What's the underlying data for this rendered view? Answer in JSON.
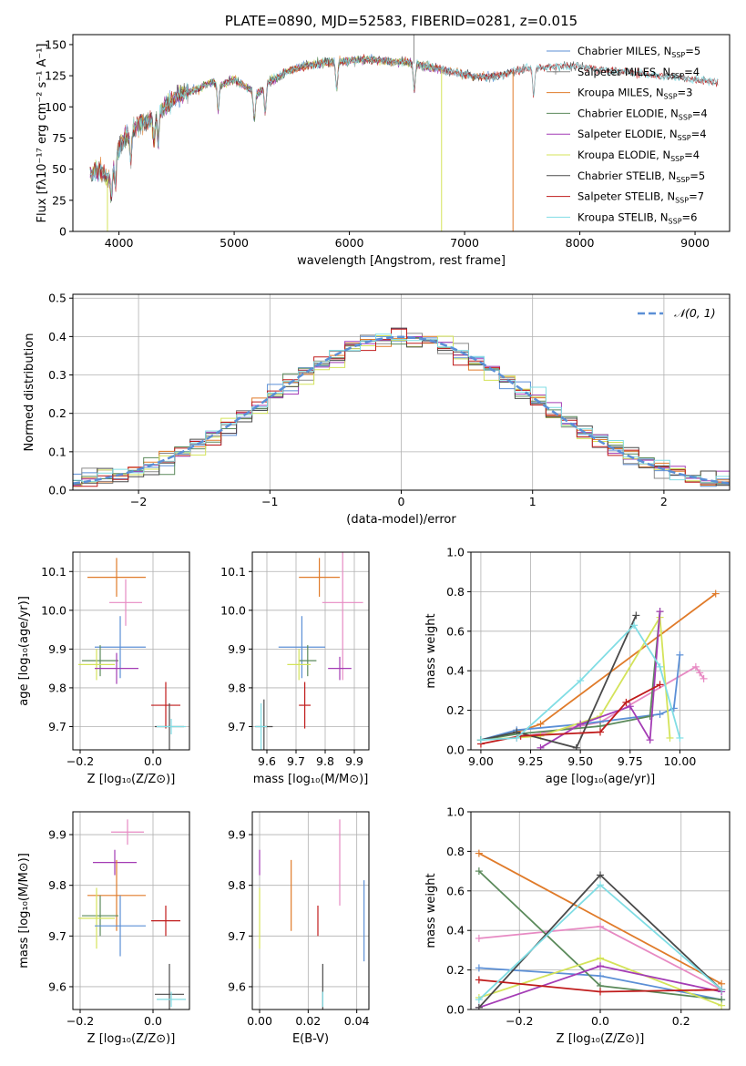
{
  "chart_data": [
    {
      "type": "line",
      "id": "spectrum",
      "title": "PLATE=0890, MJD=52583, FIBERID=0281, z=0.015",
      "xlabel": "wavelength [Angstrom, rest frame]",
      "ylabel": "Flux [fλ10⁻¹⁷ erg cm⁻² s⁻¹ A⁻¹]",
      "xlim": [
        3600,
        9300
      ],
      "ylim": [
        0,
        158
      ],
      "xticks": [
        4000,
        5000,
        6000,
        7000,
        8000,
        9000
      ],
      "yticks": [
        0,
        25,
        50,
        75,
        100,
        125,
        150
      ],
      "grid": false,
      "legend_position": "upper right",
      "series": [
        {
          "name": "Chabrier MILES, N_SSP=5",
          "color": "#5b8fd6",
          "marker": "none"
        },
        {
          "name": "Salpeter MILES, N_SSP=4",
          "color": "#8a8a8a",
          "marker": "plus"
        },
        {
          "name": "Kroupa MILES, N_SSP=3",
          "color": "#e07b2a",
          "marker": "none"
        },
        {
          "name": "Chabrier ELODIE, N_SSP=4",
          "color": "#5b8a5b",
          "marker": "none"
        },
        {
          "name": "Salpeter ELODIE, N_SSP=4",
          "color": "#a43cb5",
          "marker": "none"
        },
        {
          "name": "Kroupa ELODIE, N_SSP=4",
          "color": "#d4e35a",
          "marker": "none"
        },
        {
          "name": "Chabrier STELIB, N_SSP=5",
          "color": "#4a4a4a",
          "marker": "none"
        },
        {
          "name": "Salpeter STELIB, N_SSP=7",
          "color": "#c01c1c",
          "marker": "none"
        },
        {
          "name": "Kroupa STELIB, N_SSP=6",
          "color": "#80dde4",
          "marker": "none"
        }
      ],
      "continuum": {
        "x": [
          3750,
          3800,
          3850,
          3900,
          3950,
          4000,
          4100,
          4200,
          4300,
          4400,
          4500,
          4600,
          4700,
          4800,
          4900,
          5000,
          5100,
          5200,
          5300,
          5400,
          5500,
          5600,
          5700,
          5800,
          5900,
          6000,
          6100,
          6200,
          6300,
          6400,
          6500,
          6600,
          6700,
          6800,
          6900,
          7000,
          7100,
          7200,
          7300,
          7400,
          7500,
          7600,
          7700,
          7800,
          7900,
          8000,
          8100,
          8200,
          8300,
          8400,
          8500,
          8600,
          8700,
          8800,
          8900,
          9000,
          9100,
          9200
        ],
        "y": [
          45,
          50,
          48,
          42,
          55,
          68,
          80,
          88,
          92,
          100,
          108,
          112,
          115,
          120,
          118,
          122,
          116,
          110,
          120,
          125,
          130,
          133,
          134,
          136,
          136,
          137,
          138,
          138,
          137,
          136,
          136,
          134,
          132,
          130,
          128,
          126,
          124,
          124,
          125,
          128,
          130,
          131,
          132,
          133,
          133,
          132,
          131,
          130,
          129,
          128,
          127,
          126,
          125,
          124,
          123,
          122,
          121,
          120
        ]
      },
      "drops": [
        {
          "series": "Kroupa ELODIE, N_SSP=4",
          "x": 3900
        },
        {
          "series": "Kroupa ELODIE, N_SSP=4",
          "x": 6800
        },
        {
          "series": "Kroupa MILES, N_SSP=3",
          "x": 7420
        }
      ],
      "spike": {
        "x": 6560,
        "y": 158
      }
    },
    {
      "type": "histogram",
      "id": "residuals",
      "xlabel": "(data-model)/error",
      "ylabel": "Normed distribution",
      "xlim": [
        -2.5,
        2.5
      ],
      "ylim": [
        0,
        0.51
      ],
      "xticks": [
        -2,
        -1,
        0,
        1,
        2
      ],
      "yticks": [
        0.0,
        0.1,
        0.2,
        0.3,
        0.4,
        0.5
      ],
      "grid": true,
      "bin_width": 0.1178,
      "reference": {
        "name": "𝒩(0, 1)",
        "mean": 0,
        "sigma": 1,
        "color": "#5b8fd6",
        "dash": true
      },
      "legend_position": "upper right"
    },
    {
      "type": "errorbar",
      "id": "age-vs-Z",
      "xlabel": "Z [log₁₀(Z/Z⊙)]",
      "ylabel": "age  [log₁₀(age/yr)]",
      "xlim": [
        -0.22,
        0.1
      ],
      "ylim": [
        9.64,
        10.15
      ],
      "xticks": [
        -0.2,
        0.0
      ],
      "yticks": [
        9.7,
        9.8,
        9.9,
        10.0,
        10.1
      ],
      "grid": true,
      "points": [
        {
          "color": "#e07b2a",
          "x": -0.1,
          "xerr": 0.08,
          "y": 10.085,
          "yerr": 0.05
        },
        {
          "color": "#e78ac3",
          "x": -0.075,
          "xerr": 0.045,
          "y": 10.02,
          "yerr": 0.06
        },
        {
          "color": "#5b8fd6",
          "x": -0.09,
          "xerr": 0.07,
          "y": 9.905,
          "yerr": 0.08
        },
        {
          "color": "#5b8a5b",
          "x": -0.145,
          "xerr": 0.05,
          "y": 9.87,
          "yerr": 0.04
        },
        {
          "color": "#d4e35a",
          "x": -0.155,
          "xerr": 0.05,
          "y": 9.86,
          "yerr": 0.04
        },
        {
          "color": "#a43cb5",
          "x": -0.1,
          "xerr": 0.06,
          "y": 9.85,
          "yerr": 0.04
        },
        {
          "color": "#c01c1c",
          "x": 0.035,
          "xerr": 0.04,
          "y": 9.755,
          "yerr": 0.06
        },
        {
          "color": "#4a4a4a",
          "x": 0.045,
          "xerr": 0.04,
          "y": 9.7,
          "yerr": 0.06
        },
        {
          "color": "#80dde4",
          "x": 0.05,
          "xerr": 0.04,
          "y": 9.7,
          "yerr": 0.02
        }
      ]
    },
    {
      "type": "errorbar",
      "id": "age-vs-mass",
      "xlabel": "mass [log₁₀(M/M⊙)]",
      "ylabel": "",
      "xlim": [
        9.55,
        9.95
      ],
      "ylim": [
        9.64,
        10.15
      ],
      "xticks": [
        9.6,
        9.7,
        9.8,
        9.9
      ],
      "yticks": [
        9.7,
        9.8,
        9.9,
        10.0,
        10.1
      ],
      "grid": true,
      "points": [
        {
          "color": "#e07b2a",
          "x": 9.78,
          "xerr": 0.07,
          "y": 10.085,
          "yerr": 0.05
        },
        {
          "color": "#e78ac3",
          "x": 9.86,
          "xerr": 0.07,
          "y": 10.02,
          "yerr": 0.2
        },
        {
          "color": "#5b8fd6",
          "x": 9.72,
          "xerr": 0.08,
          "y": 9.905,
          "yerr": 0.08
        },
        {
          "color": "#5b8a5b",
          "x": 9.74,
          "xerr": 0.03,
          "y": 9.87,
          "yerr": 0.04
        },
        {
          "color": "#d4e35a",
          "x": 9.71,
          "xerr": 0.04,
          "y": 9.86,
          "yerr": 0.04
        },
        {
          "color": "#a43cb5",
          "x": 9.85,
          "xerr": 0.04,
          "y": 9.85,
          "yerr": 0.03
        },
        {
          "color": "#c01c1c",
          "x": 9.73,
          "xerr": 0.02,
          "y": 9.755,
          "yerr": 0.06
        },
        {
          "color": "#4a4a4a",
          "x": 9.59,
          "xerr": 0.03,
          "y": 9.7,
          "yerr": 0.07
        },
        {
          "color": "#80dde4",
          "x": 9.58,
          "xerr": 0.02,
          "y": 9.7,
          "yerr": 0.06
        }
      ]
    },
    {
      "type": "line",
      "id": "massweight-vs-age",
      "xlabel": "age  [log₁₀(age/yr)]",
      "ylabel": "mass weight",
      "xlim": [
        8.95,
        10.25
      ],
      "ylim": [
        0,
        1.0
      ],
      "xticks": [
        9.0,
        9.25,
        9.5,
        9.75,
        10.0
      ],
      "yticks": [
        0.0,
        0.2,
        0.4,
        0.6,
        0.8,
        1.0
      ],
      "grid": true,
      "series": [
        {
          "color": "#e07b2a",
          "x": [
            9.18,
            9.3,
            10.18
          ],
          "y": [
            0.09,
            0.13,
            0.79
          ]
        },
        {
          "color": "#e78ac3",
          "x": [
            9.18,
            9.6,
            10.08,
            10.1,
            10.12
          ],
          "y": [
            0.06,
            0.14,
            0.42,
            0.39,
            0.36
          ]
        },
        {
          "color": "#5b8fd6",
          "x": [
            9.0,
            9.18,
            9.5,
            9.9,
            9.97,
            10.0
          ],
          "y": [
            0.05,
            0.1,
            0.13,
            0.18,
            0.21,
            0.48
          ]
        },
        {
          "color": "#5b8a5b",
          "x": [
            9.0,
            9.18,
            9.6,
            9.85,
            9.9
          ],
          "y": [
            0.05,
            0.08,
            0.12,
            0.17,
            0.7
          ]
        },
        {
          "color": "#d4e35a",
          "x": [
            9.0,
            9.3,
            9.6,
            9.9,
            9.95
          ],
          "y": [
            0.05,
            0.07,
            0.17,
            0.67,
            0.06
          ]
        },
        {
          "color": "#a43cb5",
          "x": [
            9.3,
            9.5,
            9.75,
            9.85,
            9.9
          ],
          "y": [
            0.01,
            0.13,
            0.22,
            0.05,
            0.7
          ]
        },
        {
          "color": "#4a4a4a",
          "x": [
            9.0,
            9.18,
            9.48,
            9.78
          ],
          "y": [
            0.05,
            0.09,
            0.01,
            0.68
          ]
        },
        {
          "color": "#c01c1c",
          "x": [
            9.0,
            9.2,
            9.6,
            9.73,
            9.9
          ],
          "y": [
            0.03,
            0.07,
            0.09,
            0.24,
            0.33
          ]
        },
        {
          "color": "#80dde4",
          "x": [
            9.0,
            9.18,
            9.5,
            9.77,
            9.9,
            10.0
          ],
          "y": [
            0.05,
            0.06,
            0.35,
            0.63,
            0.42,
            0.06
          ]
        }
      ]
    },
    {
      "type": "errorbar",
      "id": "mass-vs-Z",
      "xlabel": "Z [log₁₀(Z/Z⊙)]",
      "ylabel": "mass [log₁₀(M/M⊙)]",
      "xlim": [
        -0.22,
        0.1
      ],
      "ylim": [
        9.555,
        9.945
      ],
      "xticks": [
        -0.2,
        0.0
      ],
      "yticks": [
        9.6,
        9.7,
        9.8,
        9.9
      ],
      "grid": true,
      "points": [
        {
          "color": "#e78ac3",
          "x": -0.07,
          "xerr": 0.045,
          "y": 9.905,
          "yerr": 0.025
        },
        {
          "color": "#a43cb5",
          "x": -0.105,
          "xerr": 0.06,
          "y": 9.845,
          "yerr": 0.025
        },
        {
          "color": "#e07b2a",
          "x": -0.1,
          "xerr": 0.08,
          "y": 9.78,
          "yerr": 0.07
        },
        {
          "color": "#5b8a5b",
          "x": -0.145,
          "xerr": 0.05,
          "y": 9.74,
          "yerr": 0.04
        },
        {
          "color": "#d4e35a",
          "x": -0.155,
          "xerr": 0.05,
          "y": 9.735,
          "yerr": 0.06
        },
        {
          "color": "#5b8fd6",
          "x": -0.09,
          "xerr": 0.07,
          "y": 9.72,
          "yerr": 0.06
        },
        {
          "color": "#c01c1c",
          "x": 0.035,
          "xerr": 0.04,
          "y": 9.73,
          "yerr": 0.03
        },
        {
          "color": "#4a4a4a",
          "x": 0.045,
          "xerr": 0.04,
          "y": 9.585,
          "yerr": 0.06
        },
        {
          "color": "#80dde4",
          "x": 0.05,
          "xerr": 0.04,
          "y": 9.575,
          "yerr": 0.015
        }
      ]
    },
    {
      "type": "errorbar",
      "id": "mass-vs-ebv",
      "xlabel": "E(B-V)",
      "ylabel": "",
      "xlim": [
        -0.003,
        0.045
      ],
      "ylim": [
        9.555,
        9.945
      ],
      "xticks": [
        0.0,
        0.02,
        0.04
      ],
      "yticks": [
        9.6,
        9.7,
        9.8,
        9.9
      ],
      "grid": true,
      "points": [
        {
          "color": "#a43cb5",
          "x": 0.0,
          "xerr": 0,
          "y": 9.845,
          "yerr": 0.025
        },
        {
          "color": "#d4e35a",
          "x": 0.0,
          "xerr": 0,
          "y": 9.735,
          "yerr": 0.06
        },
        {
          "color": "#e07b2a",
          "x": 0.013,
          "xerr": 0,
          "y": 9.78,
          "yerr": 0.07
        },
        {
          "color": "#c01c1c",
          "x": 0.024,
          "xerr": 0,
          "y": 9.73,
          "yerr": 0.03
        },
        {
          "color": "#4a4a4a",
          "x": 0.026,
          "xerr": 0,
          "y": 9.585,
          "yerr": 0.06
        },
        {
          "color": "#80dde4",
          "x": 0.026,
          "xerr": 0,
          "y": 9.575,
          "yerr": 0.015
        },
        {
          "color": "#e78ac3",
          "x": 0.033,
          "xerr": 0,
          "y": 9.845,
          "yerr": 0.085
        },
        {
          "color": "#5b8fd6",
          "x": 0.043,
          "xerr": 0,
          "y": 9.73,
          "yerr": 0.08
        }
      ]
    },
    {
      "type": "line",
      "id": "massweight-vs-Z",
      "xlabel": "Z [log₁₀(Z/Z⊙)]",
      "ylabel": "mass weight",
      "xlim": [
        -0.32,
        0.32
      ],
      "ylim": [
        0,
        1.0
      ],
      "xticks": [
        -0.2,
        0.0,
        0.2
      ],
      "yticks": [
        0.0,
        0.2,
        0.4,
        0.6,
        0.8,
        1.0
      ],
      "grid": true,
      "series": [
        {
          "color": "#e07b2a",
          "x": [
            -0.3,
            0.3
          ],
          "y": [
            0.79,
            0.13
          ]
        },
        {
          "color": "#e78ac3",
          "x": [
            -0.3,
            0.0,
            0.3
          ],
          "y": [
            0.36,
            0.42,
            0.1
          ]
        },
        {
          "color": "#5b8fd6",
          "x": [
            -0.3,
            0.0,
            0.3
          ],
          "y": [
            0.21,
            0.17,
            0.05
          ]
        },
        {
          "color": "#5b8a5b",
          "x": [
            -0.3,
            0.0,
            0.3
          ],
          "y": [
            0.7,
            0.12,
            0.05
          ]
        },
        {
          "color": "#d4e35a",
          "x": [
            -0.3,
            0.0,
            0.3
          ],
          "y": [
            0.06,
            0.26,
            0.02
          ]
        },
        {
          "color": "#a43cb5",
          "x": [
            -0.3,
            0.0,
            0.3
          ],
          "y": [
            0.01,
            0.22,
            0.09
          ]
        },
        {
          "color": "#4a4a4a",
          "x": [
            -0.3,
            0.0,
            0.3
          ],
          "y": [
            0.01,
            0.68,
            0.1
          ]
        },
        {
          "color": "#c01c1c",
          "x": [
            -0.3,
            0.0,
            0.3
          ],
          "y": [
            0.15,
            0.09,
            0.1
          ]
        },
        {
          "color": "#80dde4",
          "x": [
            -0.3,
            0.0,
            0.3
          ],
          "y": [
            0.05,
            0.63,
            0.1
          ]
        }
      ]
    }
  ]
}
